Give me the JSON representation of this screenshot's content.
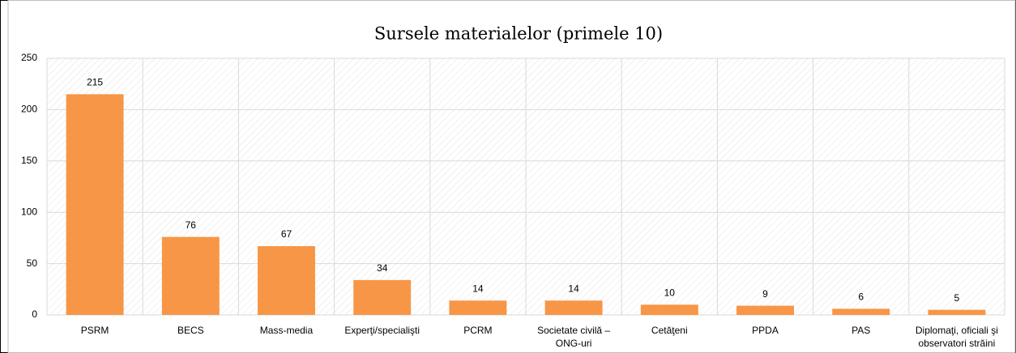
{
  "chart_data": {
    "type": "bar",
    "title": "Sursele materialelor (primele 10)",
    "categories": [
      "PSRM",
      "BECS",
      "Mass-media",
      "Experţi/specialişti",
      "PCRM",
      "Societate civilă – ONG-uri",
      "Cetăţeni",
      "PPDA",
      "PAS",
      "Diplomaţi, oficiali şi observatori străini"
    ],
    "values": [
      215,
      76,
      67,
      34,
      14,
      14,
      10,
      9,
      6,
      5
    ],
    "color": "#f79646",
    "ylim": [
      0,
      250
    ],
    "yticks": [
      0,
      50,
      100,
      150,
      200,
      250
    ],
    "grid": true
  }
}
